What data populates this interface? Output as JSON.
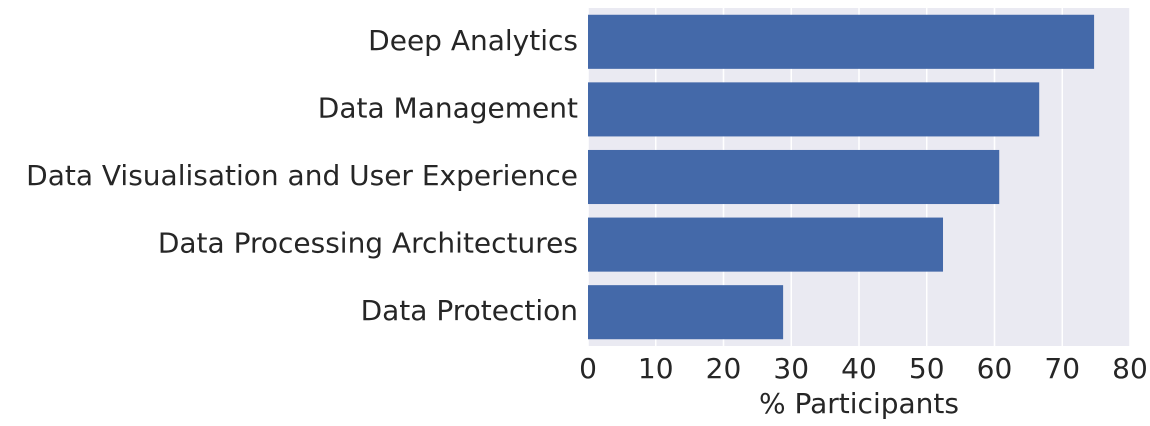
{
  "chart_data": {
    "type": "bar",
    "orientation": "horizontal",
    "x_label": "% Participants",
    "categories": [
      "Deep Analytics",
      "Data Management",
      "Data Visualisation and User Experience",
      "Data Processing Architectures",
      "Data Protection"
    ],
    "values": [
      74.7,
      66.6,
      60.7,
      52.4,
      28.8
    ],
    "color": "#4469a9",
    "xlim": [
      0,
      80
    ],
    "xticks": [
      0,
      10,
      20,
      30,
      40,
      50,
      60,
      70,
      80
    ],
    "grid": true
  }
}
